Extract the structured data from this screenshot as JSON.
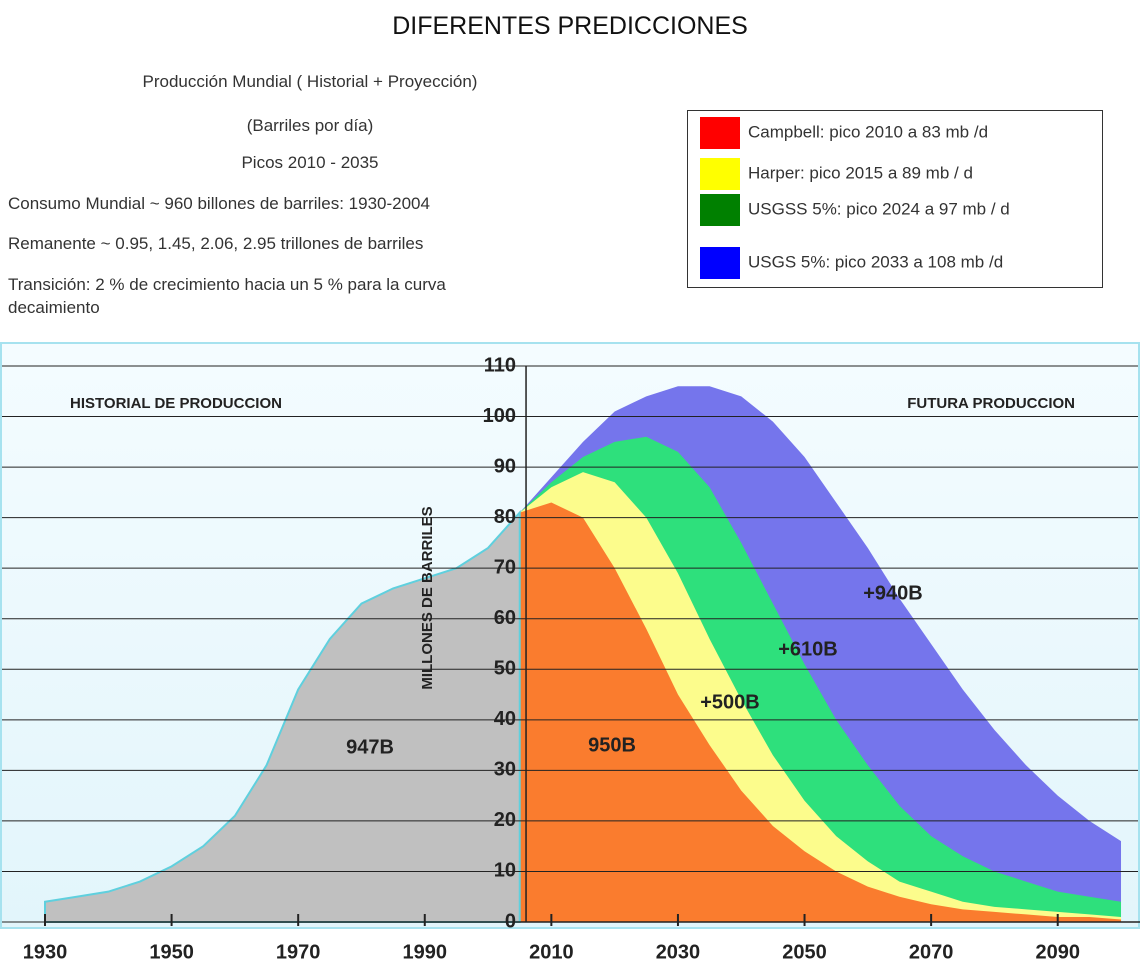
{
  "title": "DIFERENTES PREDICCIONES",
  "notes": [
    "Producción Mundial ( Historial + Proyección)",
    "(Barriles por día)",
    "Picos 2010 - 2035",
    "Consumo Mundial ~ 960 billones de barriles: 1930-2004",
    "Remanente ~ 0.95, 1.45, 2.06, 2.95 trillones de barriles",
    "Transición: 2 % de crecimiento hacia un 5 % para la curva",
    "decaimiento"
  ],
  "chart_data": {
    "type": "area",
    "ylabel": "MILLONES DE BARRILES",
    "annotations": [
      "HISTORIAL DE PRODUCCION",
      "FUTURA PRODUCCION",
      "947B",
      "950B",
      "+500B",
      "+610B",
      "+940B"
    ],
    "x": [
      1930,
      1935,
      1940,
      1945,
      1950,
      1955,
      1960,
      1965,
      1970,
      1975,
      1980,
      1985,
      1990,
      1995,
      2000,
      2005,
      2010,
      2015,
      2020,
      2025,
      2030,
      2035,
      2040,
      2045,
      2050,
      2055,
      2060,
      2065,
      2070,
      2075,
      2080,
      2085,
      2090,
      2095,
      2100
    ],
    "xlim": [
      1930,
      2103
    ],
    "xticks": [
      1930,
      1950,
      1970,
      1990,
      2010,
      2030,
      2050,
      2070,
      2090
    ],
    "ylim": [
      0,
      110
    ],
    "yticks": [
      0,
      10,
      20,
      30,
      40,
      50,
      60,
      70,
      80,
      90,
      100,
      110
    ],
    "yaxis_x": 2006,
    "grid": true,
    "series": [
      {
        "name": "USGS 5%: pico 2033 a 108 mb /d",
        "color": "#7575ec",
        "legend_color": "#0000ff",
        "values": [
          null,
          null,
          null,
          null,
          null,
          null,
          null,
          null,
          null,
          null,
          null,
          null,
          null,
          null,
          null,
          81,
          88,
          95,
          101,
          104,
          106,
          106,
          104,
          99,
          92,
          83,
          74,
          64,
          55,
          46,
          38,
          31,
          25,
          20,
          16
        ]
      },
      {
        "name": "USGSS 5%: pico 2024 a 97 mb / d",
        "color": "#2ee07c",
        "legend_color": "#008000",
        "values": [
          null,
          null,
          null,
          null,
          null,
          null,
          null,
          null,
          null,
          null,
          null,
          null,
          null,
          null,
          null,
          81,
          87,
          92,
          95,
          96,
          93,
          86,
          75,
          63,
          51,
          40,
          31,
          23,
          17,
          13,
          10,
          8,
          6,
          5,
          4
        ]
      },
      {
        "name": "Harper: pico 2015 a 89 mb / d",
        "color": "#fcfc8c",
        "legend_color": "#ffff00",
        "values": [
          null,
          null,
          null,
          null,
          null,
          null,
          null,
          null,
          null,
          null,
          null,
          null,
          null,
          null,
          null,
          81,
          86,
          89,
          87,
          80,
          69,
          56,
          44,
          33,
          24,
          17,
          12,
          8,
          6,
          4,
          3,
          2.5,
          2,
          1.5,
          1
        ]
      },
      {
        "name": "Campbell: pico 2010 a 83 mb /d",
        "color": "#fa7c2e",
        "legend_color": "#ff0000",
        "values": [
          null,
          null,
          null,
          null,
          null,
          null,
          null,
          null,
          null,
          null,
          null,
          null,
          null,
          null,
          null,
          81,
          83,
          80,
          70,
          58,
          45,
          35,
          26,
          19,
          14,
          10,
          7,
          5,
          3.5,
          2.5,
          2,
          1.5,
          1,
          1,
          0.5
        ]
      },
      {
        "name": "Historial",
        "color": "#c0c0c0",
        "values": [
          4,
          5,
          6,
          8,
          11,
          15,
          21,
          31,
          46,
          56,
          63,
          66,
          68,
          70,
          74,
          81,
          null,
          null,
          null,
          null,
          null,
          null,
          null,
          null,
          null,
          null,
          null,
          null,
          null,
          null,
          null,
          null,
          null,
          null,
          null
        ]
      }
    ]
  }
}
